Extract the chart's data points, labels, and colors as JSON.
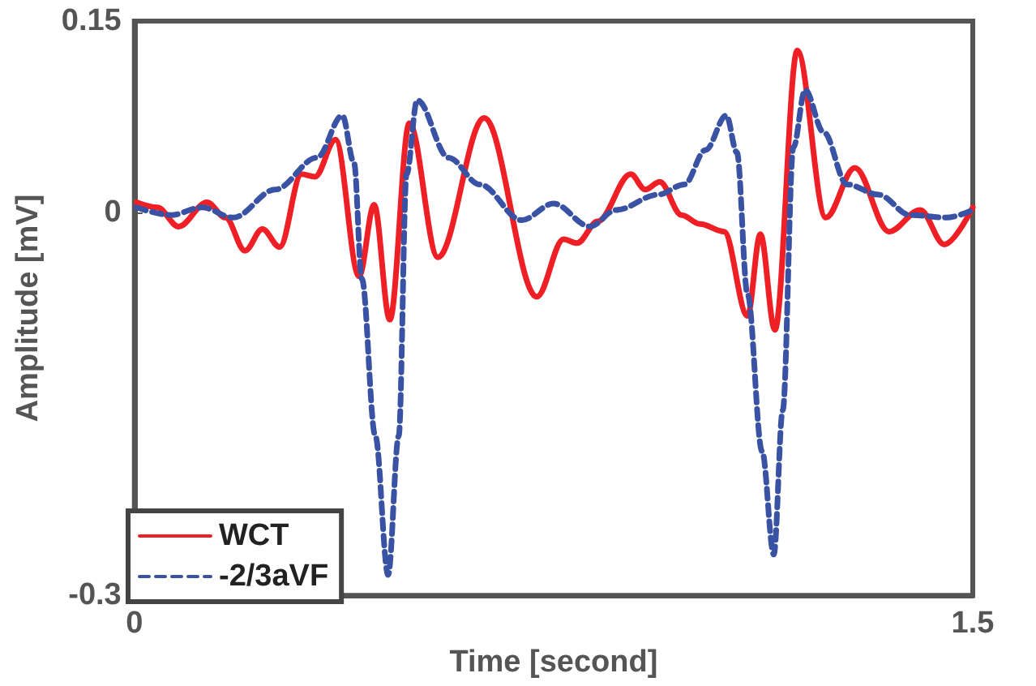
{
  "chart_data": {
    "type": "line",
    "xlabel": "Time [second]",
    "ylabel": "Amplitude [mV]",
    "xlim": [
      0,
      1.5
    ],
    "xticks": [
      0,
      1.5
    ],
    "ylim": [
      -0.3,
      0.15
    ],
    "yticks": [
      -0.3,
      0,
      0.15
    ],
    "grid": false,
    "legend": "bottom left",
    "marker": "none",
    "series": [
      {
        "name": "WCT",
        "color": "#ee2026",
        "line_style": "solid",
        "x": [
          0.004,
          0.041,
          0.079,
          0.13,
          0.163,
          0.198,
          0.229,
          0.26,
          0.299,
          0.323,
          0.36,
          0.402,
          0.429,
          0.457,
          0.492,
          0.543,
          0.626,
          0.72,
          0.768,
          0.792,
          0.829,
          0.888,
          0.914,
          0.94,
          0.979,
          1.012,
          1.055,
          1.097,
          1.12,
          1.146,
          1.186,
          1.237,
          1.289,
          1.35,
          1.406,
          1.449,
          1.5
        ],
        "values": [
          0.008,
          0.004,
          -0.011,
          0.008,
          -0.004,
          -0.03,
          -0.013,
          -0.027,
          0.03,
          0.028,
          0.057,
          -0.05,
          0.006,
          -0.084,
          0.07,
          -0.035,
          0.074,
          -0.066,
          -0.021,
          -0.024,
          -0.007,
          0.03,
          0.018,
          0.024,
          -0.002,
          -0.009,
          -0.015,
          -0.081,
          -0.017,
          -0.092,
          0.127,
          -0.004,
          0.035,
          -0.015,
          0.002,
          -0.025,
          0.004
        ]
      },
      {
        "name": "-2/3aVF",
        "color": "#3a52a3",
        "line_style": "dashed",
        "x": [
          0.004,
          0.065,
          0.121,
          0.177,
          0.252,
          0.327,
          0.372,
          0.393,
          0.407,
          0.431,
          0.454,
          0.473,
          0.487,
          0.506,
          0.562,
          0.618,
          0.693,
          0.75,
          0.815,
          0.862,
          0.937,
          0.984,
          1.022,
          1.059,
          1.078,
          1.097,
          1.123,
          1.144,
          1.16,
          1.179,
          1.2,
          1.233,
          1.275,
          1.331,
          1.388,
          1.453,
          1.5
        ],
        "values": [
          0.004,
          -0.002,
          0.004,
          -0.004,
          0.018,
          0.043,
          0.076,
          0.039,
          -0.052,
          -0.175,
          -0.284,
          -0.175,
          0.03,
          0.088,
          0.043,
          0.022,
          -0.006,
          0.007,
          -0.011,
          0.002,
          0.014,
          0.022,
          0.049,
          0.076,
          0.047,
          -0.064,
          -0.187,
          -0.268,
          -0.155,
          0.051,
          0.096,
          0.063,
          0.022,
          0.014,
          -0.002,
          -0.004,
          0.002
        ]
      }
    ]
  }
}
